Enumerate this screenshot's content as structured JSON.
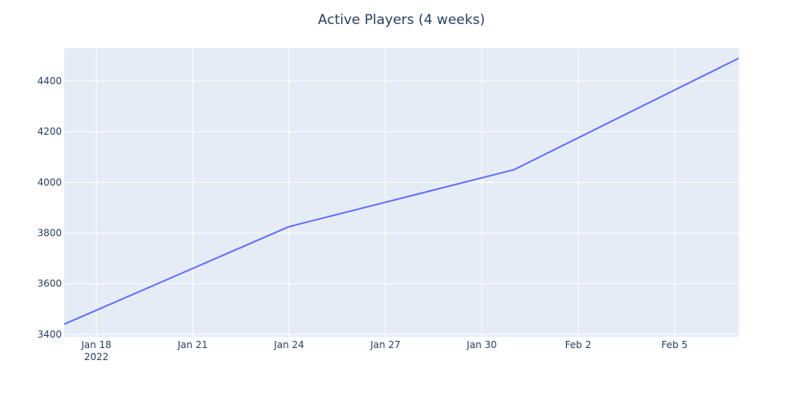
{
  "chart_data": {
    "type": "line",
    "title": "Active Players (4 weeks)",
    "xlabel": "",
    "ylabel": "",
    "x_axis": {
      "type": "date",
      "range": [
        "2022-01-17",
        "2022-02-07"
      ],
      "ticks": [
        {
          "date": "2022-01-18",
          "label": "Jan 18",
          "sublabel": "2022"
        },
        {
          "date": "2022-01-21",
          "label": "Jan 21"
        },
        {
          "date": "2022-01-24",
          "label": "Jan 24"
        },
        {
          "date": "2022-01-27",
          "label": "Jan 27"
        },
        {
          "date": "2022-01-30",
          "label": "Jan 30"
        },
        {
          "date": "2022-02-02",
          "label": "Feb 2"
        },
        {
          "date": "2022-02-05",
          "label": "Feb 5"
        }
      ]
    },
    "y_axis": {
      "range": [
        3390,
        4530
      ],
      "ticks": [
        3400,
        3600,
        3800,
        4000,
        4200,
        4400
      ]
    },
    "grid": true,
    "series": [
      {
        "color": "#636efa",
        "points": [
          {
            "x": "2022-01-17",
            "y": 3440
          },
          {
            "x": "2022-01-24",
            "y": 3825
          },
          {
            "x": "2022-01-31",
            "y": 4050
          },
          {
            "x": "2022-02-07",
            "y": 4490
          }
        ]
      }
    ],
    "colors": {
      "plot_bg": "#e5ecf6",
      "grid": "#ffffff",
      "text": "#2a3f5f"
    }
  }
}
